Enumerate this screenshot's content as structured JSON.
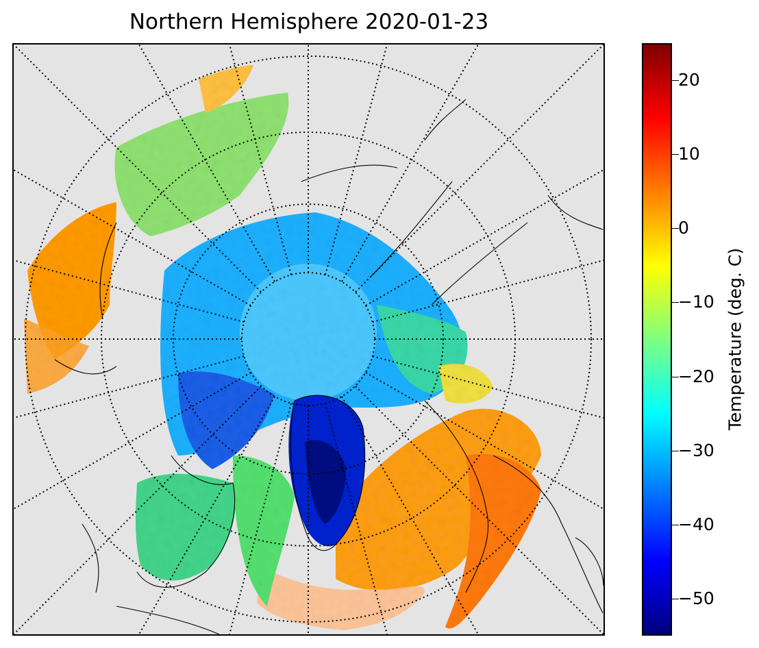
{
  "title": "Northern Hemisphere 2020-01-23",
  "colorbar": {
    "label": "Temperature (deg. C)",
    "min": -55,
    "max": 25,
    "ticks": [
      "20",
      "10",
      "0",
      "−10",
      "−20",
      "−30",
      "−40",
      "−50"
    ],
    "tick_values": [
      20,
      10,
      0,
      -10,
      -20,
      -30,
      -40,
      -50
    ],
    "colormap": "jet",
    "colors": [
      "#00007f",
      "#0000ff",
      "#007fff",
      "#00ffff",
      "#7fff7f",
      "#ffff00",
      "#ff7f00",
      "#ff0000",
      "#7f0000"
    ]
  },
  "map": {
    "projection": "north-polar-stereographic",
    "background_color": "#e4e4e4",
    "graticule": "dotted",
    "coastlines": true
  }
}
